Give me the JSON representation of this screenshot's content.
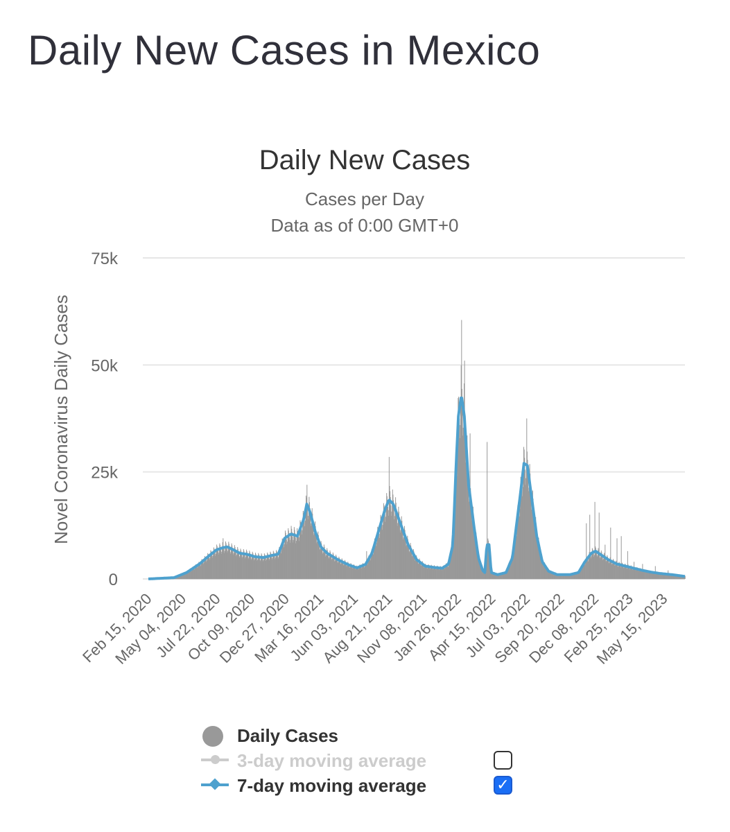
{
  "page": {
    "title": "Daily New Cases in Mexico"
  },
  "chart_data": {
    "type": "bar",
    "title": "Daily New Cases",
    "subtitle_lines": [
      "Cases per Day",
      "Data as of 0:00 GMT+0"
    ],
    "ylabel": "Novel Coronavirus Daily Cases",
    "ylim": [
      0,
      75000
    ],
    "y_ticks": [
      {
        "value": 0,
        "label": "0"
      },
      {
        "value": 25000,
        "label": "25k"
      },
      {
        "value": 50000,
        "label": "50k"
      },
      {
        "value": 75000,
        "label": "75k"
      }
    ],
    "x_tick_labels": [
      "Feb 15, 2020",
      "May 04, 2020",
      "Jul 22, 2020",
      "Oct 09, 2020",
      "Dec 27, 2020",
      "Mar 16, 2021",
      "Jun 03, 2021",
      "Aug 21, 2021",
      "Nov 08, 2021",
      "Jan 26, 2022",
      "Apr 15, 2022",
      "Jul 03, 2022",
      "Sep 20, 2022",
      "Dec 08, 2022",
      "Feb 25, 2023",
      "May 15, 2023"
    ],
    "x_range_days": [
      0,
      1260
    ],
    "moving_average_7day": [
      [
        0,
        0
      ],
      [
        60,
        300
      ],
      [
        90,
        1500
      ],
      [
        120,
        3500
      ],
      [
        140,
        5200
      ],
      [
        160,
        6800
      ],
      [
        175,
        7300
      ],
      [
        185,
        7500
      ],
      [
        200,
        6800
      ],
      [
        215,
        6000
      ],
      [
        230,
        5800
      ],
      [
        250,
        5200
      ],
      [
        270,
        5000
      ],
      [
        290,
        5500
      ],
      [
        305,
        5800
      ],
      [
        320,
        9500
      ],
      [
        335,
        10500
      ],
      [
        350,
        10000
      ],
      [
        365,
        14000
      ],
      [
        372,
        17500
      ],
      [
        380,
        15500
      ],
      [
        392,
        11000
      ],
      [
        405,
        7500
      ],
      [
        420,
        6000
      ],
      [
        445,
        4500
      ],
      [
        470,
        3300
      ],
      [
        490,
        2600
      ],
      [
        510,
        3400
      ],
      [
        525,
        6000
      ],
      [
        540,
        11000
      ],
      [
        555,
        16000
      ],
      [
        565,
        18500
      ],
      [
        575,
        17500
      ],
      [
        590,
        13500
      ],
      [
        610,
        8000
      ],
      [
        630,
        4500
      ],
      [
        650,
        3000
      ],
      [
        670,
        2700
      ],
      [
        690,
        2500
      ],
      [
        705,
        3500
      ],
      [
        715,
        8000
      ],
      [
        722,
        25000
      ],
      [
        728,
        38000
      ],
      [
        735,
        43000
      ],
      [
        742,
        38000
      ],
      [
        752,
        22000
      ],
      [
        765,
        12000
      ],
      [
        775,
        5000
      ],
      [
        785,
        2000
      ],
      [
        790,
        1500
      ],
      [
        795,
        8000
      ],
      [
        800,
        8000
      ],
      [
        805,
        1500
      ],
      [
        820,
        1000
      ],
      [
        840,
        1500
      ],
      [
        855,
        5000
      ],
      [
        865,
        13000
      ],
      [
        875,
        21000
      ],
      [
        882,
        27000
      ],
      [
        890,
        26500
      ],
      [
        900,
        19000
      ],
      [
        912,
        10000
      ],
      [
        925,
        4000
      ],
      [
        940,
        1800
      ],
      [
        960,
        1000
      ],
      [
        990,
        1000
      ],
      [
        1010,
        1500
      ],
      [
        1025,
        4000
      ],
      [
        1040,
        6000
      ],
      [
        1050,
        6500
      ],
      [
        1065,
        5500
      ],
      [
        1080,
        4500
      ],
      [
        1100,
        3500
      ],
      [
        1120,
        3000
      ],
      [
        1140,
        2500
      ],
      [
        1160,
        2000
      ],
      [
        1180,
        1600
      ],
      [
        1200,
        1300
      ],
      [
        1230,
        1000
      ],
      [
        1260,
        600
      ]
    ],
    "daily_spikes": [
      {
        "day": 175,
        "value": 9500
      },
      {
        "day": 372,
        "value": 22000
      },
      {
        "day": 512,
        "value": 6500
      },
      {
        "day": 565,
        "value": 28500
      },
      {
        "day": 735,
        "value": 60500
      },
      {
        "day": 742,
        "value": 51000
      },
      {
        "day": 755,
        "value": 34000
      },
      {
        "day": 795,
        "value": 32000
      },
      {
        "day": 888,
        "value": 37500
      },
      {
        "day": 1028,
        "value": 13000
      },
      {
        "day": 1036,
        "value": 15000
      },
      {
        "day": 1048,
        "value": 18000
      },
      {
        "day": 1058,
        "value": 15500
      },
      {
        "day": 1072,
        "value": 8000
      },
      {
        "day": 1085,
        "value": 12000
      },
      {
        "day": 1100,
        "value": 9500
      },
      {
        "day": 1110,
        "value": 10000
      },
      {
        "day": 1125,
        "value": 6500
      },
      {
        "day": 1140,
        "value": 4000
      },
      {
        "day": 1160,
        "value": 3500
      },
      {
        "day": 1190,
        "value": 3000
      },
      {
        "day": 1220,
        "value": 2000
      }
    ],
    "legend": [
      {
        "label": "Daily Cases",
        "color": "#999999",
        "active": true,
        "has_checkbox": false
      },
      {
        "label": "3-day moving average",
        "color": "#cccccc",
        "active": false,
        "has_checkbox": true,
        "checked": false
      },
      {
        "label": "7-day moving average",
        "color": "#4ea1ce",
        "active": true,
        "has_checkbox": true,
        "checked": true
      }
    ],
    "colors": {
      "bars": "#999999",
      "ma7": "#4ea1ce",
      "grid": "#e6e6e6",
      "text": "#333333",
      "subtext": "#666666"
    }
  }
}
